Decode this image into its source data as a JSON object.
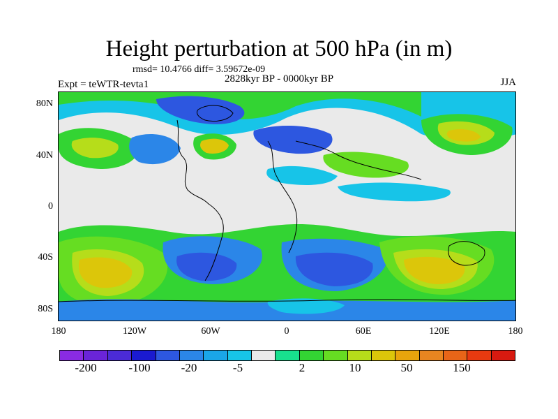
{
  "title": "Height perturbation at 500 hPa (in m)",
  "stats": "rmsd= 10.4766 diff= 3.59672e-09",
  "experiment": "Expt = teWTR-tevta1",
  "period": "2828kyr BP - 0000kyr BP",
  "season": "JJA",
  "y_ticks": [
    "80N",
    "40N",
    "0",
    "40S",
    "80S"
  ],
  "x_ticks": [
    "180",
    "120W",
    "60W",
    "0",
    "60E",
    "120E",
    "180"
  ],
  "colorbar": {
    "colors": [
      "#8a2be2",
      "#6a24d8",
      "#4b2bd6",
      "#1a1ad0",
      "#2d57e0",
      "#2b86e8",
      "#1aa6e8",
      "#17c4e8",
      "#eaeaea",
      "#18e08e",
      "#33d433",
      "#66dd22",
      "#b6dd1a",
      "#dcc60a",
      "#e8a40c",
      "#e88520",
      "#e86518",
      "#e83a10",
      "#d81a10"
    ],
    "labels": [
      "-200",
      "-100",
      "-20",
      "-5",
      "2",
      "10",
      "50",
      "150"
    ]
  }
}
